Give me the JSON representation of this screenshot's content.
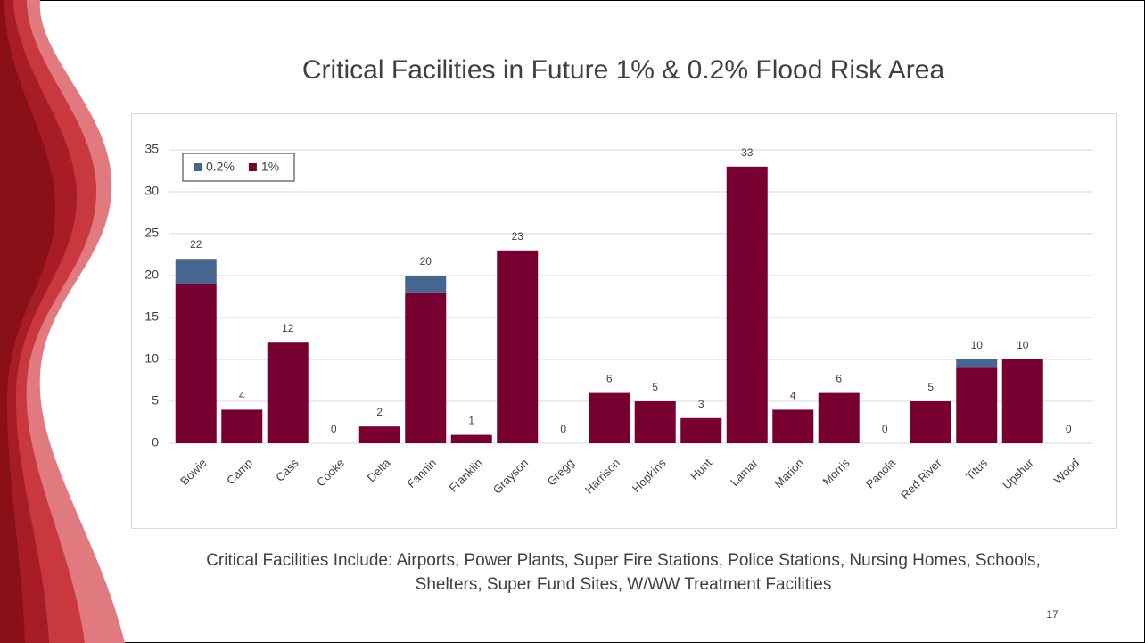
{
  "chart_data": {
    "type": "stacked-bar",
    "title": "Critical Facilities in Future 1% & 0.2% Flood Risk Area",
    "categories": [
      "Bowie",
      "Camp",
      "Cass",
      "Cooke",
      "Delta",
      "Fannin",
      "Franklin",
      "Grayson",
      "Gregg",
      "Harrison",
      "Hopkins",
      "Hunt",
      "Lamar",
      "Marion",
      "Morris",
      "Panola",
      "Red River",
      "Titus",
      "Upshur",
      "Wood"
    ],
    "series": [
      {
        "name": "0.2%",
        "color": "#44668f",
        "values": [
          3,
          0,
          0,
          0,
          0,
          2,
          0,
          0,
          0,
          0,
          0,
          0,
          0,
          0,
          0,
          0,
          0,
          1,
          0,
          0
        ]
      },
      {
        "name": "1%",
        "color": "#780030",
        "values": [
          19,
          4,
          12,
          0,
          2,
          18,
          1,
          23,
          0,
          6,
          5,
          3,
          33,
          4,
          6,
          0,
          5,
          9,
          10,
          0
        ]
      }
    ],
    "totals": [
      22,
      4,
      12,
      0,
      2,
      20,
      1,
      23,
      0,
      6,
      5,
      3,
      33,
      4,
      6,
      0,
      5,
      10,
      10,
      0
    ],
    "ylim": [
      0,
      35
    ],
    "yticks": [
      0,
      5,
      10,
      15,
      20,
      25,
      30,
      35
    ],
    "grid": true,
    "legend": "top-left"
  },
  "footnote": [
    "Critical Facilities Include: Airports, Power Plants, Super Fire Stations, Police Stations, Nursing Homes, Schools,",
    "Shelters, Super Fund Sites, W/WW Treatment Facilities"
  ],
  "page_number": "17"
}
